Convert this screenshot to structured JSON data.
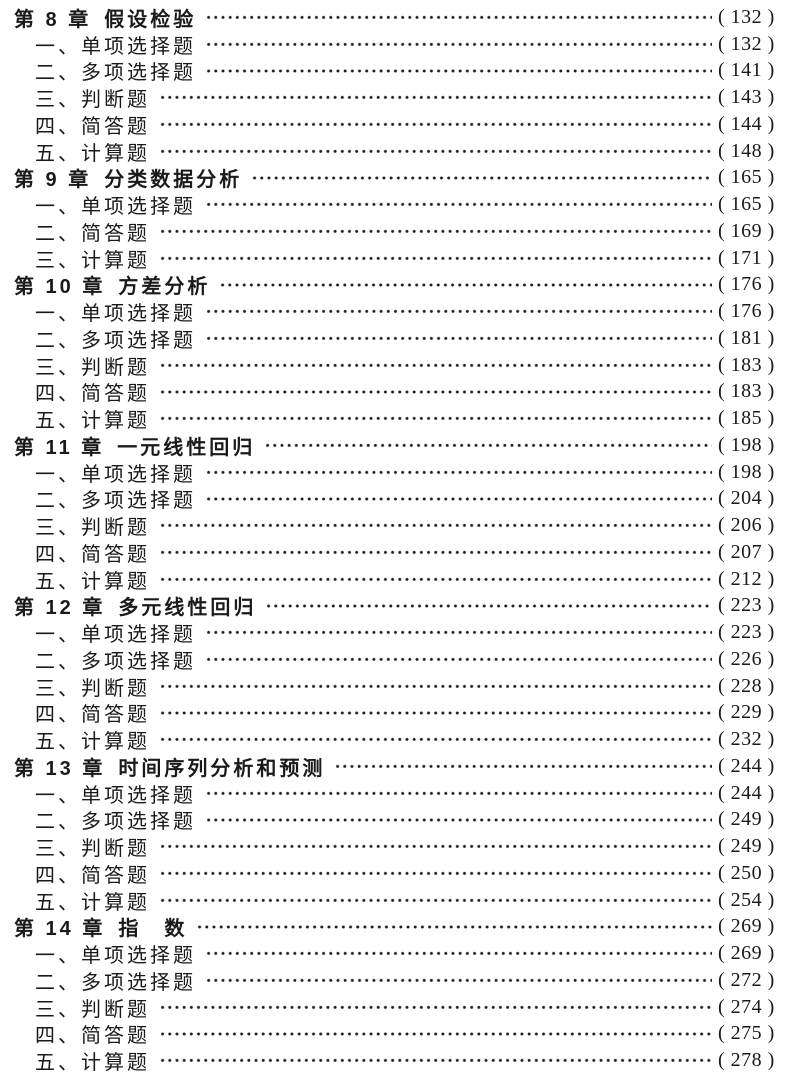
{
  "page": {
    "background": "#ffffff",
    "text_color": "#1a1a1a"
  },
  "toc": {
    "chapters": [
      {
        "label": "第 8 章",
        "title": "假设检验",
        "page": "( 132 )",
        "items": [
          {
            "title": "一、单项选择题",
            "page": "( 132 )"
          },
          {
            "title": "二、多项选择题",
            "page": "( 141 )"
          },
          {
            "title": "三、判断题",
            "page": "( 143 )"
          },
          {
            "title": "四、简答题",
            "page": "( 144 )"
          },
          {
            "title": "五、计算题",
            "page": "( 148 )"
          }
        ]
      },
      {
        "label": "第 9 章",
        "title": "分类数据分析",
        "page": "( 165 )",
        "items": [
          {
            "title": "一、单项选择题",
            "page": "( 165 )"
          },
          {
            "title": "二、简答题",
            "page": "( 169 )"
          },
          {
            "title": "三、计算题",
            "page": "( 171 )"
          }
        ]
      },
      {
        "label": "第 10 章",
        "title": "方差分析",
        "page": "( 176 )",
        "items": [
          {
            "title": "一、单项选择题",
            "page": "( 176 )"
          },
          {
            "title": "二、多项选择题",
            "page": "( 181 )"
          },
          {
            "title": "三、判断题",
            "page": "( 183 )"
          },
          {
            "title": "四、简答题",
            "page": "( 183 )"
          },
          {
            "title": "五、计算题",
            "page": "( 185 )"
          }
        ]
      },
      {
        "label": "第 11 章",
        "title": "一元线性回归",
        "page": "( 198 )",
        "items": [
          {
            "title": "一、单项选择题",
            "page": "( 198 )"
          },
          {
            "title": "二、多项选择题",
            "page": "( 204 )"
          },
          {
            "title": "三、判断题",
            "page": "( 206 )"
          },
          {
            "title": "四、简答题",
            "page": "( 207 )"
          },
          {
            "title": "五、计算题",
            "page": "( 212 )"
          }
        ]
      },
      {
        "label": "第 12 章",
        "title": "多元线性回归",
        "page": "( 223 )",
        "items": [
          {
            "title": "一、单项选择题",
            "page": "( 223 )"
          },
          {
            "title": "二、多项选择题",
            "page": "( 226 )"
          },
          {
            "title": "三、判断题",
            "page": "( 228 )"
          },
          {
            "title": "四、简答题",
            "page": "( 229 )"
          },
          {
            "title": "五、计算题",
            "page": "( 232 )"
          }
        ]
      },
      {
        "label": "第 13 章",
        "title": "时间序列分析和预测",
        "page": "( 244 )",
        "items": [
          {
            "title": "一、单项选择题",
            "page": "( 244 )"
          },
          {
            "title": "二、多项选择题",
            "page": "( 249 )"
          },
          {
            "title": "三、判断题",
            "page": "( 249 )"
          },
          {
            "title": "四、简答题",
            "page": "( 250 )"
          },
          {
            "title": "五、计算题",
            "page": "( 254 )"
          }
        ]
      },
      {
        "label": "第 14 章",
        "title": "指　数",
        "page": "( 269 )",
        "items": [
          {
            "title": "一、单项选择题",
            "page": "( 269 )"
          },
          {
            "title": "二、多项选择题",
            "page": "( 272 )"
          },
          {
            "title": "三、判断题",
            "page": "( 274 )"
          },
          {
            "title": "四、简答题",
            "page": "( 275 )"
          },
          {
            "title": "五、计算题",
            "page": "( 278 )"
          }
        ]
      }
    ]
  }
}
